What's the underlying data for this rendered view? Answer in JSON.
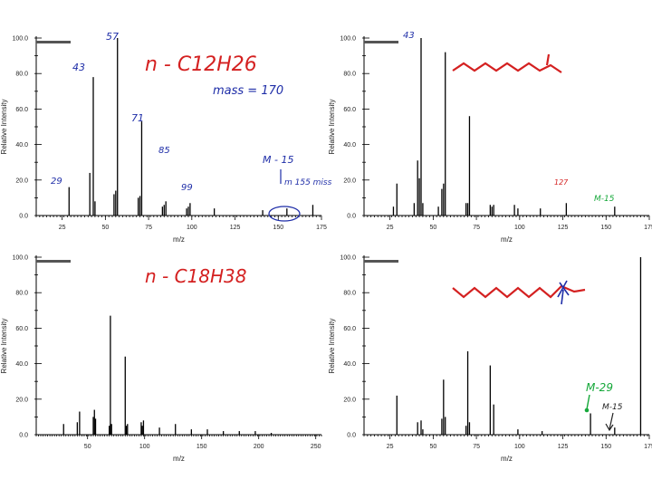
{
  "colors": {
    "ink_blue": "#1f2ea8",
    "ink_red": "#d42020",
    "ink_green": "#16a83a",
    "axis": "#000000"
  },
  "chart_data": [
    {
      "type": "bar",
      "xlabel": "m/z",
      "ylabel": "Relative Intensity",
      "xlim": [
        10,
        175
      ],
      "ylim": [
        0,
        100
      ],
      "xticks": [
        25,
        50,
        75,
        100,
        125,
        150,
        175
      ],
      "yticks": [
        0,
        20,
        40,
        60,
        80,
        100
      ],
      "x": [
        29,
        41,
        43,
        44,
        55,
        56,
        57,
        69,
        70,
        71,
        83,
        84,
        85,
        97,
        98,
        99,
        113,
        141,
        155,
        170
      ],
      "values": [
        16,
        24,
        78,
        8,
        12,
        14,
        100,
        10,
        11,
        53,
        5,
        6,
        8,
        4,
        5,
        7,
        4,
        3,
        4,
        6
      ],
      "annotations": [
        "57",
        "43",
        "71",
        "29",
        "85",
        "99",
        "n - C12H26",
        "mass = 170",
        "M - 15",
        "m 155 miss"
      ]
    },
    {
      "type": "bar",
      "xlabel": "m/z",
      "ylabel": "Relative Intensity",
      "xlim": [
        10,
        175
      ],
      "ylim": [
        0,
        100
      ],
      "xticks": [
        25,
        50,
        75,
        100,
        125,
        150,
        175
      ],
      "yticks": [
        0,
        20,
        40,
        60,
        80,
        100
      ],
      "x": [
        27,
        29,
        39,
        41,
        42,
        43,
        44,
        53,
        55,
        56,
        57,
        69,
        70,
        71,
        83,
        84,
        85,
        97,
        99,
        112,
        127,
        155
      ],
      "values": [
        5,
        18,
        7,
        31,
        21,
        100,
        7,
        5,
        15,
        18,
        92,
        7,
        7,
        56,
        6,
        5,
        6,
        6,
        4,
        4,
        7,
        5
      ],
      "annotations": [
        "43",
        "127",
        "M-15"
      ]
    },
    {
      "type": "bar",
      "xlabel": "m/z",
      "ylabel": "Relative Intensity",
      "xlim": [
        5,
        255
      ],
      "ylim": [
        0,
        100
      ],
      "xticks": [
        50,
        100,
        150,
        200,
        250
      ],
      "yticks": [
        0,
        20,
        40,
        60,
        80,
        100
      ],
      "x": [
        29,
        41,
        43,
        55,
        56,
        57,
        69,
        70,
        71,
        83,
        84,
        85,
        97,
        98,
        99,
        113,
        127,
        141,
        155,
        169,
        183,
        197,
        211
      ],
      "values": [
        6,
        7,
        13,
        10,
        14,
        9,
        5,
        67,
        6,
        44,
        5,
        6,
        7,
        5,
        8,
        4,
        6,
        3,
        3,
        2,
        2,
        2,
        1
      ],
      "annotations": [
        "n - C18H38"
      ]
    },
    {
      "type": "bar",
      "xlabel": "m/z",
      "ylabel": "Relative Intensity",
      "xlim": [
        10,
        175
      ],
      "ylim": [
        0,
        100
      ],
      "xticks": [
        25,
        50,
        75,
        100,
        125,
        150,
        175
      ],
      "yticks": [
        0,
        20,
        40,
        60,
        80,
        100
      ],
      "x": [
        29,
        41,
        43,
        44,
        55,
        56,
        57,
        69,
        70,
        71,
        83,
        85,
        99,
        113,
        141,
        155,
        170
      ],
      "values": [
        22,
        7,
        8,
        3,
        9,
        31,
        10,
        5,
        47,
        7,
        39,
        17,
        3,
        2,
        12,
        4,
        100
      ],
      "annotations": [
        "M-29",
        "M-15"
      ]
    }
  ]
}
